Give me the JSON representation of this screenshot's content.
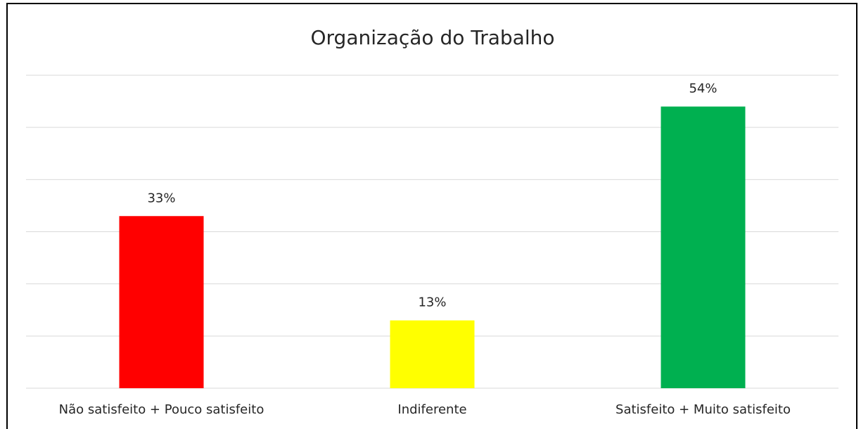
{
  "chart_data": {
    "type": "bar",
    "title": "Organização do Trabalho",
    "categories": [
      "Não satisfeito + Pouco satisfeito",
      "Indiferente",
      "Satisfeito + Muito satisfeito"
    ],
    "values": [
      33,
      13,
      54
    ],
    "value_labels": [
      "33%",
      "13%",
      "54%"
    ],
    "colors": [
      "#ff0000",
      "#ffff00",
      "#00b050"
    ],
    "ylim": [
      0,
      60
    ],
    "yticks": [
      0,
      10,
      20,
      30,
      40,
      50,
      60
    ],
    "grid": true
  }
}
